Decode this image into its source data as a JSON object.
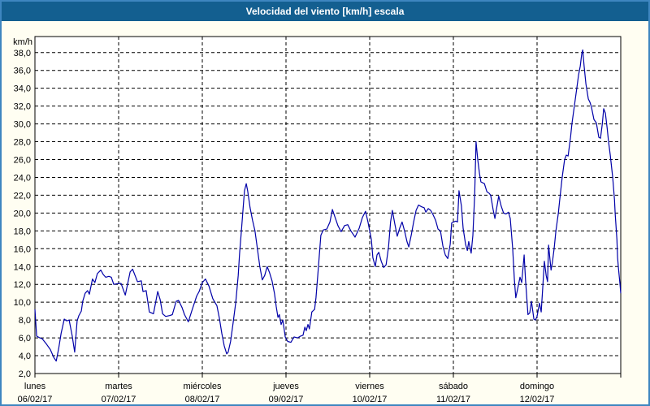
{
  "window": {
    "title": "Velocidad del viento [km/h] escala"
  },
  "colors": {
    "titlebar": "#135f90",
    "frame_border": "#3e86c0",
    "panel_bg": "#fffef2",
    "plot_bg": "#ffffff",
    "grid": "#000000",
    "line": "#0000a8",
    "title_text": "#ffffff",
    "label_text": "#000000"
  },
  "chart_data": {
    "type": "line",
    "title": "Velocidad del viento [km/h] escala",
    "xlabel": "",
    "ylabel": "km/h",
    "ylim": [
      2,
      39.8
    ],
    "grid": "dashed",
    "legend": "none",
    "y_ticks": [
      {
        "value": 38,
        "label": "38,0"
      },
      {
        "value": 36,
        "label": "36,0"
      },
      {
        "value": 34,
        "label": "34,0"
      },
      {
        "value": 32,
        "label": "32,0"
      },
      {
        "value": 30,
        "label": "30,0"
      },
      {
        "value": 28,
        "label": "28,0"
      },
      {
        "value": 26,
        "label": "26,0"
      },
      {
        "value": 24,
        "label": "24,0"
      },
      {
        "value": 22,
        "label": "22,0"
      },
      {
        "value": 20,
        "label": "20,0"
      },
      {
        "value": 18,
        "label": "18,0"
      },
      {
        "value": 16,
        "label": "16,0"
      },
      {
        "value": 14,
        "label": "14,0"
      },
      {
        "value": 12,
        "label": "12,0"
      },
      {
        "value": 10,
        "label": "10,0"
      },
      {
        "value": 8,
        "label": "8,0"
      },
      {
        "value": 6,
        "label": "6,0"
      },
      {
        "value": 4,
        "label": "4,0"
      },
      {
        "value": 2,
        "label": "2,0"
      }
    ],
    "x_days": [
      {
        "name": "lunes",
        "date": "06/02/17"
      },
      {
        "name": "martes",
        "date": "07/02/17"
      },
      {
        "name": "miércoles",
        "date": "08/02/17"
      },
      {
        "name": "jueves",
        "date": "09/02/17"
      },
      {
        "name": "viernes",
        "date": "10/02/17"
      },
      {
        "name": "sábado",
        "date": "11/02/17"
      },
      {
        "name": "domingo",
        "date": "12/02/17"
      }
    ],
    "hours_total": 168,
    "series": [
      {
        "name": "Velocidad del viento [km/h]",
        "color": "#0000a8",
        "points": [
          [
            0,
            9.2
          ],
          [
            0.5,
            6.2
          ],
          [
            1.4,
            6.0
          ],
          [
            2.1,
            5.9
          ],
          [
            3.3,
            5.3
          ],
          [
            4.4,
            4.7
          ],
          [
            5.4,
            3.8
          ],
          [
            6.1,
            3.4
          ],
          [
            6.8,
            4.8
          ],
          [
            7.5,
            6.5
          ],
          [
            8.4,
            8.1
          ],
          [
            9.1,
            7.9
          ],
          [
            9.8,
            8.0
          ],
          [
            10.7,
            6.2
          ],
          [
            11.4,
            4.4
          ],
          [
            12.1,
            7.9
          ],
          [
            12.6,
            8.5
          ],
          [
            13.3,
            9.0
          ],
          [
            13.7,
            10.1
          ],
          [
            14.4,
            11.0
          ],
          [
            15.1,
            11.3
          ],
          [
            15.6,
            10.9
          ],
          [
            16.5,
            12.6
          ],
          [
            17.2,
            12.2
          ],
          [
            17.9,
            13.2
          ],
          [
            18.9,
            13.6
          ],
          [
            19.6,
            13.1
          ],
          [
            20.3,
            12.8
          ],
          [
            21.2,
            12.9
          ],
          [
            21.9,
            12.8
          ],
          [
            22.6,
            12.0
          ],
          [
            24.0,
            12.1
          ],
          [
            24.7,
            12.1
          ],
          [
            25.9,
            10.8
          ],
          [
            27.3,
            13.4
          ],
          [
            28.0,
            13.7
          ],
          [
            28.7,
            13.0
          ],
          [
            29.4,
            12.3
          ],
          [
            30.5,
            12.4
          ],
          [
            31.0,
            11.2
          ],
          [
            31.9,
            11.3
          ],
          [
            32.8,
            8.9
          ],
          [
            34.0,
            8.7
          ],
          [
            35.2,
            11.2
          ],
          [
            35.9,
            10.3
          ],
          [
            36.6,
            8.7
          ],
          [
            37.5,
            8.4
          ],
          [
            38.7,
            8.5
          ],
          [
            39.4,
            8.6
          ],
          [
            40.5,
            10.1
          ],
          [
            41.2,
            10.2
          ],
          [
            42.2,
            9.4
          ],
          [
            42.9,
            8.6
          ],
          [
            44.0,
            7.8
          ],
          [
            45.2,
            9.3
          ],
          [
            46.4,
            10.7
          ],
          [
            47.1,
            11.2
          ],
          [
            48.0,
            12.2
          ],
          [
            48.9,
            12.6
          ],
          [
            49.9,
            11.8
          ],
          [
            51.0,
            10.4
          ],
          [
            52.2,
            9.6
          ],
          [
            52.9,
            8.2
          ],
          [
            53.6,
            6.5
          ],
          [
            54.3,
            5.1
          ],
          [
            55.0,
            4.2
          ],
          [
            55.4,
            4.4
          ],
          [
            56.1,
            5.6
          ],
          [
            56.8,
            7.6
          ],
          [
            57.6,
            10.0
          ],
          [
            58.3,
            13.0
          ],
          [
            58.7,
            15.5
          ],
          [
            59.2,
            18.0
          ],
          [
            59.7,
            20.5
          ],
          [
            60.1,
            22.5
          ],
          [
            60.6,
            23.3
          ],
          [
            61.0,
            22.5
          ],
          [
            61.7,
            20.6
          ],
          [
            62.4,
            19.2
          ],
          [
            63.1,
            18.0
          ],
          [
            63.8,
            16.0
          ],
          [
            64.5,
            14.0
          ],
          [
            65.2,
            12.5
          ],
          [
            65.9,
            13.0
          ],
          [
            66.6,
            14.0
          ],
          [
            67.3,
            13.3
          ],
          [
            68.0,
            12.4
          ],
          [
            68.7,
            11.0
          ],
          [
            69.2,
            9.5
          ],
          [
            69.7,
            8.3
          ],
          [
            70.1,
            8.6
          ],
          [
            70.6,
            7.5
          ],
          [
            71.1,
            8.0
          ],
          [
            71.8,
            6.1
          ],
          [
            72.5,
            5.6
          ],
          [
            73.4,
            5.5
          ],
          [
            74.3,
            6.1
          ],
          [
            75.3,
            6.0
          ],
          [
            76.2,
            6.2
          ],
          [
            76.9,
            6.3
          ],
          [
            77.4,
            7.2
          ],
          [
            77.8,
            6.8
          ],
          [
            78.3,
            7.5
          ],
          [
            78.7,
            7.0
          ],
          [
            79.4,
            8.9
          ],
          [
            80.2,
            9.2
          ],
          [
            80.6,
            10.5
          ],
          [
            81.1,
            13.0
          ],
          [
            81.6,
            15.5
          ],
          [
            82.0,
            17.5
          ],
          [
            82.7,
            18.1
          ],
          [
            83.7,
            18.2
          ],
          [
            84.6,
            19.0
          ],
          [
            85.3,
            20.4
          ],
          [
            86.0,
            19.6
          ],
          [
            86.9,
            18.6
          ],
          [
            87.8,
            17.9
          ],
          [
            88.8,
            18.6
          ],
          [
            89.7,
            18.7
          ],
          [
            90.6,
            18.0
          ],
          [
            91.8,
            17.3
          ],
          [
            93.0,
            18.3
          ],
          [
            93.9,
            19.5
          ],
          [
            94.8,
            20.2
          ],
          [
            95.5,
            19.0
          ],
          [
            96.5,
            17.0
          ],
          [
            96.9,
            15.0
          ],
          [
            97.6,
            14.0
          ],
          [
            98.1,
            15.3
          ],
          [
            98.6,
            15.6
          ],
          [
            99.3,
            14.6
          ],
          [
            100.0,
            13.9
          ],
          [
            100.7,
            14.2
          ],
          [
            101.4,
            16.2
          ],
          [
            102.0,
            19.0
          ],
          [
            102.5,
            20.3
          ],
          [
            103.2,
            18.8
          ],
          [
            103.9,
            17.4
          ],
          [
            104.6,
            18.3
          ],
          [
            105.3,
            19.0
          ],
          [
            106.0,
            18.0
          ],
          [
            106.7,
            16.8
          ],
          [
            107.2,
            16.2
          ],
          [
            107.9,
            17.5
          ],
          [
            108.6,
            19.0
          ],
          [
            109.3,
            20.3
          ],
          [
            110.0,
            20.9
          ],
          [
            110.9,
            20.7
          ],
          [
            111.6,
            20.6
          ],
          [
            112.1,
            20.1
          ],
          [
            112.8,
            20.5
          ],
          [
            113.5,
            20.3
          ],
          [
            114.2,
            19.8
          ],
          [
            114.9,
            19.2
          ],
          [
            115.6,
            18.2
          ],
          [
            116.3,
            18.0
          ],
          [
            117.0,
            16.3
          ],
          [
            117.7,
            15.3
          ],
          [
            118.4,
            14.9
          ],
          [
            119.1,
            16.5
          ],
          [
            119.5,
            18.9
          ],
          [
            120.0,
            19.0
          ],
          [
            120.7,
            19.1
          ],
          [
            121.2,
            19.0
          ],
          [
            121.6,
            22.5
          ],
          [
            122.3,
            20.8
          ],
          [
            122.8,
            18.3
          ],
          [
            123.5,
            16.5
          ],
          [
            124.0,
            15.8
          ],
          [
            124.4,
            16.8
          ],
          [
            125.1,
            15.5
          ],
          [
            125.6,
            17.5
          ],
          [
            126.1,
            22.0
          ],
          [
            126.5,
            28.0
          ],
          [
            127.0,
            26.0
          ],
          [
            127.5,
            24.4
          ],
          [
            127.9,
            23.5
          ],
          [
            128.9,
            23.3
          ],
          [
            129.6,
            22.4
          ],
          [
            130.3,
            22.2
          ],
          [
            130.7,
            22.0
          ],
          [
            131.4,
            20.4
          ],
          [
            131.9,
            19.4
          ],
          [
            132.6,
            21.0
          ],
          [
            133.0,
            21.9
          ],
          [
            133.7,
            20.8
          ],
          [
            134.4,
            20.0
          ],
          [
            135.1,
            19.9
          ],
          [
            135.8,
            20.1
          ],
          [
            136.3,
            19.4
          ],
          [
            137.0,
            16.0
          ],
          [
            137.5,
            12.5
          ],
          [
            137.9,
            10.5
          ],
          [
            138.6,
            11.8
          ],
          [
            139.1,
            12.8
          ],
          [
            139.6,
            12.2
          ],
          [
            140.3,
            15.3
          ],
          [
            140.7,
            12.5
          ],
          [
            141.4,
            8.6
          ],
          [
            141.9,
            8.8
          ],
          [
            142.4,
            10.1
          ],
          [
            143.1,
            8.1
          ],
          [
            143.5,
            8.0
          ],
          [
            144.0,
            8.4
          ],
          [
            144.7,
            9.9
          ],
          [
            145.2,
            8.9
          ],
          [
            145.6,
            11.5
          ],
          [
            146.1,
            14.6
          ],
          [
            146.6,
            13.0
          ],
          [
            147.0,
            12.3
          ],
          [
            147.3,
            16.4
          ],
          [
            147.7,
            14.8
          ],
          [
            148.0,
            13.6
          ],
          [
            148.4,
            14.5
          ],
          [
            148.9,
            16.0
          ],
          [
            149.4,
            18.0
          ],
          [
            150.1,
            20.0
          ],
          [
            150.5,
            21.5
          ],
          [
            151.2,
            24.0
          ],
          [
            151.9,
            26.0
          ],
          [
            152.4,
            26.5
          ],
          [
            152.9,
            26.4
          ],
          [
            153.6,
            28.5
          ],
          [
            154.0,
            30.0
          ],
          [
            154.7,
            32.0
          ],
          [
            155.4,
            34.0
          ],
          [
            155.9,
            35.5
          ],
          [
            156.4,
            36.5
          ],
          [
            156.8,
            37.8
          ],
          [
            157.1,
            38.3
          ],
          [
            157.5,
            36.5
          ],
          [
            158.0,
            34.5
          ],
          [
            158.7,
            32.8
          ],
          [
            159.2,
            32.4
          ],
          [
            159.6,
            31.9
          ],
          [
            160.3,
            30.5
          ],
          [
            161.0,
            30.1
          ],
          [
            161.7,
            28.5
          ],
          [
            162.2,
            28.4
          ],
          [
            162.7,
            30.0
          ],
          [
            163.1,
            31.7
          ],
          [
            163.6,
            31.2
          ],
          [
            164.1,
            29.5
          ],
          [
            164.5,
            28.0
          ],
          [
            165.0,
            26.5
          ],
          [
            165.7,
            24.0
          ],
          [
            166.2,
            21.5
          ],
          [
            166.4,
            20.0
          ],
          [
            166.9,
            17.0
          ],
          [
            167.1,
            15.0
          ],
          [
            167.3,
            14.0
          ],
          [
            167.8,
            12.0
          ],
          [
            168.0,
            11.0
          ]
        ]
      }
    ]
  }
}
